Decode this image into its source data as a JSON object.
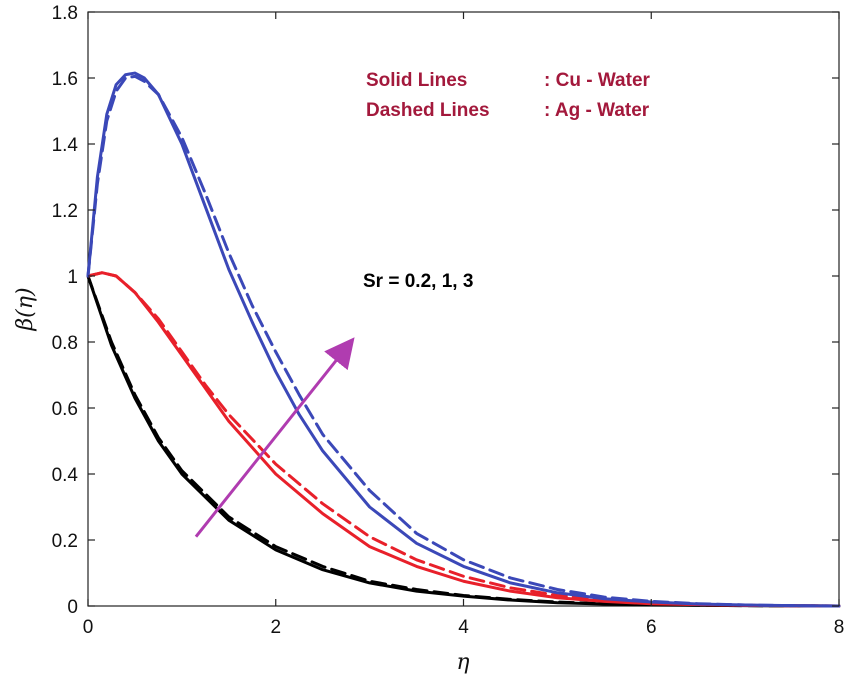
{
  "chart_data": {
    "type": "line",
    "xlabel": "η",
    "ylabel": "β(η)",
    "xlim": [
      0,
      8
    ],
    "ylim": [
      0,
      1.8
    ],
    "xticks": [
      0,
      2,
      4,
      6,
      8
    ],
    "yticks": [
      0,
      0.2,
      0.4,
      0.6,
      0.8,
      1,
      1.2,
      1.4,
      1.6,
      1.8
    ],
    "xtick_labels": [
      "0",
      "2",
      "4",
      "6",
      "8"
    ],
    "ytick_labels": [
      "0",
      "0.2",
      "0.4",
      "0.6",
      "0.8",
      "1",
      "1.2",
      "1.4",
      "1.6",
      "1.8"
    ],
    "grid": false,
    "legend": {
      "solid_label": "Solid Lines",
      "solid_value": ":  Cu - Water",
      "dashed_label": "Dashed Lines",
      "dashed_value": ":  Ag - Water"
    },
    "annotation": {
      "text": "Sr = 0.2, 1, 3",
      "arrow_from": [
        1.15,
        0.21
      ],
      "arrow_to": [
        2.8,
        0.8
      ],
      "arrow_color": "#b03cb0"
    },
    "series": [
      {
        "color": "#000000",
        "style": "solid",
        "x": [
          0,
          0.25,
          0.5,
          0.75,
          1,
          1.5,
          2,
          2.5,
          3,
          3.5,
          4,
          4.5,
          5,
          5.5,
          6,
          7,
          8
        ],
        "y": [
          1,
          0.79,
          0.63,
          0.5,
          0.4,
          0.26,
          0.17,
          0.11,
          0.07,
          0.045,
          0.03,
          0.018,
          0.01,
          0.006,
          0.003,
          0.001,
          0
        ]
      },
      {
        "color": "#000000",
        "style": "dashed",
        "x": [
          0,
          0.25,
          0.5,
          0.75,
          1,
          1.5,
          2,
          2.5,
          3,
          3.5,
          4,
          4.5,
          5,
          5.5,
          6,
          7,
          8
        ],
        "y": [
          1,
          0.8,
          0.64,
          0.51,
          0.41,
          0.27,
          0.18,
          0.12,
          0.075,
          0.05,
          0.032,
          0.02,
          0.012,
          0.007,
          0.004,
          0.001,
          0
        ]
      },
      {
        "color": "#e8202a",
        "style": "solid",
        "x": [
          0,
          0.15,
          0.3,
          0.5,
          0.75,
          1,
          1.25,
          1.5,
          2,
          2.5,
          3,
          3.5,
          4,
          4.5,
          5,
          5.5,
          6,
          7,
          8
        ],
        "y": [
          1,
          1.01,
          1.0,
          0.95,
          0.86,
          0.76,
          0.66,
          0.56,
          0.4,
          0.28,
          0.18,
          0.12,
          0.075,
          0.045,
          0.025,
          0.014,
          0.007,
          0.002,
          0
        ]
      },
      {
        "color": "#e8202a",
        "style": "dashed",
        "x": [
          0,
          0.15,
          0.3,
          0.5,
          0.75,
          1,
          1.25,
          1.5,
          2,
          2.5,
          3,
          3.5,
          4,
          4.5,
          5,
          5.5,
          6,
          7,
          8
        ],
        "y": [
          1,
          1.01,
          1.0,
          0.95,
          0.87,
          0.77,
          0.67,
          0.58,
          0.43,
          0.31,
          0.21,
          0.14,
          0.09,
          0.055,
          0.032,
          0.017,
          0.008,
          0.002,
          0
        ]
      },
      {
        "color": "#3b48b8",
        "style": "solid",
        "x": [
          0,
          0.1,
          0.2,
          0.3,
          0.4,
          0.5,
          0.6,
          0.75,
          1,
          1.25,
          1.5,
          1.75,
          2,
          2.25,
          2.5,
          3,
          3.5,
          4,
          4.5,
          5,
          5.5,
          6,
          6.5,
          7,
          7.5,
          8
        ],
        "y": [
          1,
          1.3,
          1.49,
          1.58,
          1.61,
          1.615,
          1.6,
          1.55,
          1.4,
          1.21,
          1.02,
          0.86,
          0.71,
          0.58,
          0.47,
          0.3,
          0.19,
          0.12,
          0.07,
          0.04,
          0.022,
          0.012,
          0.006,
          0.003,
          0.001,
          0
        ]
      },
      {
        "color": "#3b48b8",
        "style": "dashed",
        "x": [
          0,
          0.1,
          0.2,
          0.3,
          0.4,
          0.5,
          0.6,
          0.75,
          1,
          1.25,
          1.5,
          1.75,
          2,
          2.25,
          2.5,
          3,
          3.5,
          4,
          4.5,
          5,
          5.5,
          6,
          6.5,
          7,
          7.5,
          8
        ],
        "y": [
          1,
          1.28,
          1.47,
          1.56,
          1.6,
          1.605,
          1.59,
          1.55,
          1.42,
          1.25,
          1.07,
          0.91,
          0.77,
          0.64,
          0.52,
          0.35,
          0.22,
          0.14,
          0.085,
          0.05,
          0.027,
          0.014,
          0.007,
          0.003,
          0.001,
          0
        ]
      }
    ]
  }
}
